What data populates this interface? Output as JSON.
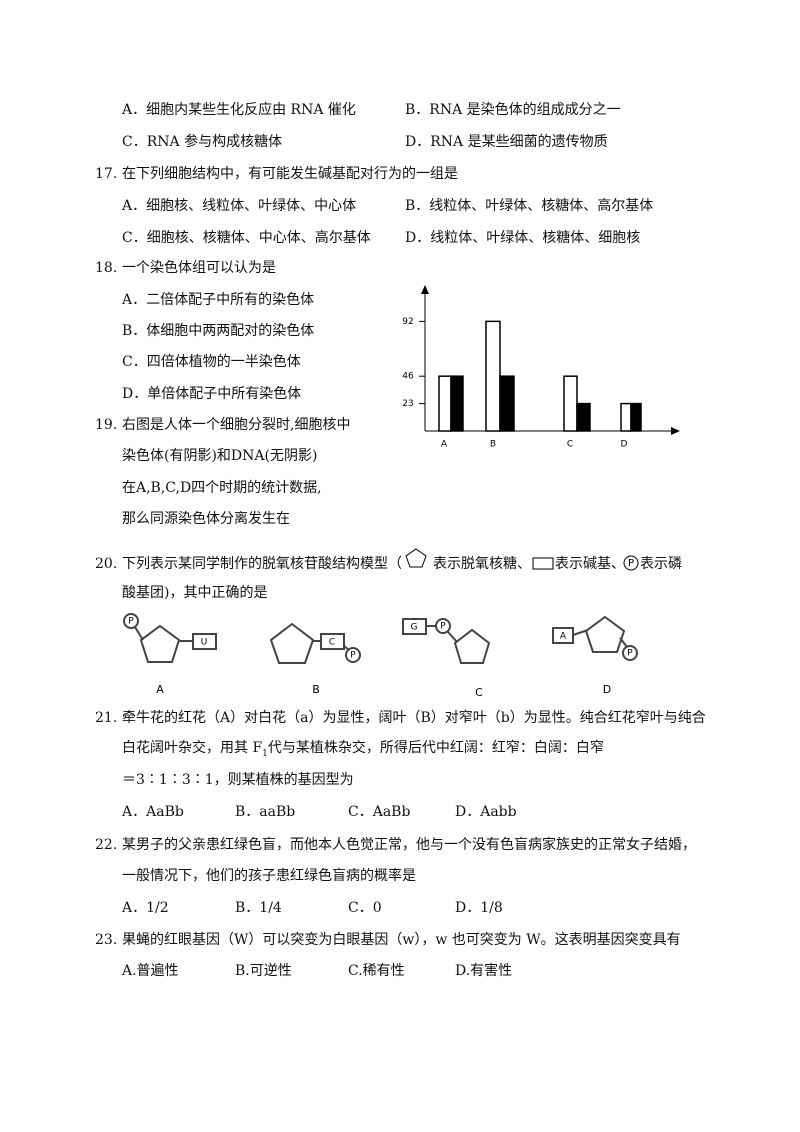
{
  "q16": {
    "options": [
      "A．细胞内某些生化反应由 RNA 催化",
      "B．RNA 是染色体的组成成分之一",
      "C．RNA 参与构成核糖体",
      "D．RNA 是某些细菌的遗传物质"
    ]
  },
  "q17": {
    "number": "17.",
    "stem": "在下列细胞结构中，有可能发生碱基配对行为的一组是",
    "options": [
      "A．细胞核、线粒体、叶绿体、中心体",
      "B．线粒体、叶绿体、核糖体、高尔基体",
      "C．细胞核、核糖体、中心体、高尔基体",
      "D．线粒体、叶绿体、核糖体、细胞核"
    ]
  },
  "q18": {
    "number": "18.",
    "stem": "一个染色体组可以认为是",
    "options": [
      "A．二倍体配子中所有的染色体",
      "B．体细胞中两两配对的染色体",
      "C．四倍体植物的一半染色体",
      "D．单倍体配子中所有染色体"
    ]
  },
  "q19": {
    "number": "19.",
    "lines": [
      "右图是人体一个细胞分裂时,细胞核中",
      "染色体(有阴影)和DNA(无阴影)",
      "在A,B,C,D四个时期的统计数据,",
      "那么同源染色体分离发生在"
    ],
    "chart": {
      "type": "bar",
      "categories": [
        "A",
        "B",
        "C",
        "D"
      ],
      "series": [
        {
          "color": "#ffffff",
          "values": [
            46,
            92,
            46,
            23
          ]
        },
        {
          "color": "#000000",
          "values": [
            46,
            46,
            23,
            23
          ]
        }
      ],
      "ylim": [
        0,
        120
      ],
      "yticks": [
        23,
        46,
        92
      ]
    }
  },
  "q20": {
    "number": "20.",
    "stem_parts": [
      "下列表示某同学制作的脱氧核苷酸结构模型（",
      "表示脱氧核糖、",
      "表示碱基、",
      "表示磷",
      "酸基团)，其中正确的是"
    ],
    "phosphate": "P",
    "diagrams": [
      {
        "phosphate": "P",
        "base": "U",
        "label": "A"
      },
      {
        "phosphate": "P",
        "base": "C",
        "label": "B"
      },
      {
        "phosphate": "P",
        "base": "G",
        "label": "C"
      },
      {
        "phosphate": "P",
        "base": "A",
        "label": "D"
      }
    ]
  },
  "q21": {
    "number": "21.",
    "lines": [
      "牵牛花的红花（A）对白花（a）为显性，阔叶（B）对窄叶（b）为显性。纯合红花窄叶与纯合",
      "＝3∶1∶3∶1，则某植株的基因型为"
    ],
    "line2_parts": [
      "白花阔叶杂交，用其 F",
      "1",
      "代与某植株杂交，所得后代中红阔：红窄：白阔：白窄"
    ],
    "options": [
      "A．AaBb",
      "B．aaBb",
      "C．AaBb",
      "D．Aabb"
    ]
  },
  "q22": {
    "number": "22.",
    "lines": [
      "某男子的父亲患红绿色盲，而他本人色觉正常，他与一个没有色盲病家族史的正常女子结婚，",
      "一般情况下，他们的孩子患红绿色盲病的概率是"
    ],
    "options": [
      "A．1/2",
      "B．1/4",
      "C．0",
      "D．1/8"
    ]
  },
  "q23": {
    "number": "23.",
    "stem": "果蝇的红眼基因（W）可以突变为白眼基因（w），w 也可突变为 W。这表明基因突变具有",
    "options": [
      "A.普遍性",
      "B.可逆性",
      "C.稀有性",
      "D.有害性"
    ]
  }
}
